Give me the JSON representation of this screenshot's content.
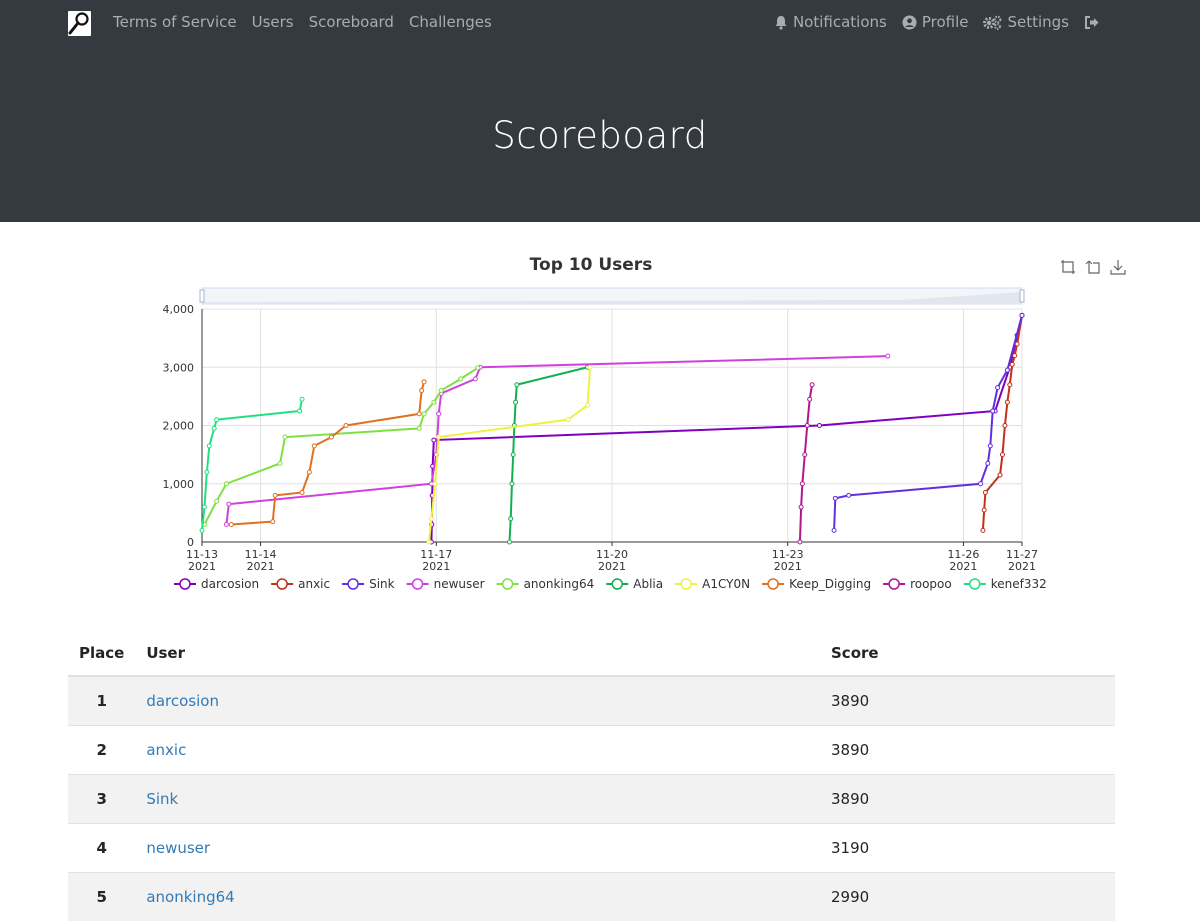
{
  "nav": {
    "brand_icon": "magnifier-logo-icon",
    "left": [
      "Terms of Service",
      "Users",
      "Scoreboard",
      "Challenges"
    ],
    "notifications": "Notifications",
    "profile": "Profile",
    "settings": "Settings"
  },
  "header": {
    "title": "Scoreboard"
  },
  "chart_data": {
    "type": "line",
    "title": "Top 10 Users",
    "xlabel": "",
    "ylabel": "",
    "ylim": [
      0,
      4000
    ],
    "xlim": [
      "2021-11-13",
      "2021-11-27"
    ],
    "yticks": [
      "0",
      "1,000",
      "2,000",
      "3,000",
      "4,000"
    ],
    "xticks": [
      {
        "date": "2021-11-13",
        "line1": "11-13",
        "line2": "2021"
      },
      {
        "date": "2021-11-14",
        "line1": "11-14",
        "line2": "2021"
      },
      {
        "date": "2021-11-17",
        "line1": "11-17",
        "line2": "2021"
      },
      {
        "date": "2021-11-20",
        "line1": "11-20",
        "line2": "2021"
      },
      {
        "date": "2021-11-23",
        "line1": "11-23",
        "line2": "2021"
      },
      {
        "date": "2021-11-26",
        "line1": "11-26",
        "line2": "2021"
      },
      {
        "date": "2021-11-27",
        "line1": "11-27",
        "line2": "2021"
      }
    ],
    "grid": true,
    "legend_position": "bottom",
    "series": [
      {
        "name": "darcosion",
        "color": "#8000c0",
        "points": [
          [
            "2021-11-16T22:00",
            0
          ],
          [
            "2021-11-16T22:10",
            300
          ],
          [
            "2021-11-16T22:20",
            800
          ],
          [
            "2021-11-16T22:30",
            1300
          ],
          [
            "2021-11-16T23:00",
            1750
          ],
          [
            "2021-11-23T13:00",
            2000
          ],
          [
            "2021-11-26T13:00",
            2250
          ],
          [
            "2021-11-26T19:00",
            3000
          ],
          [
            "2021-11-26T22:00",
            3550
          ],
          [
            "2021-11-27T00:00",
            3890
          ]
        ]
      },
      {
        "name": "anxic",
        "color": "#c0301a",
        "points": [
          [
            "2021-11-26T08:00",
            200
          ],
          [
            "2021-11-26T08:30",
            550
          ],
          [
            "2021-11-26T09:00",
            850
          ],
          [
            "2021-11-26T15:00",
            1150
          ],
          [
            "2021-11-26T16:00",
            1500
          ],
          [
            "2021-11-26T17:00",
            2000
          ],
          [
            "2021-11-26T18:00",
            2400
          ],
          [
            "2021-11-26T19:00",
            2700
          ],
          [
            "2021-11-26T20:00",
            3050
          ],
          [
            "2021-11-26T21:00",
            3200
          ],
          [
            "2021-11-26T22:00",
            3400
          ],
          [
            "2021-11-27T00:00",
            3890
          ]
        ]
      },
      {
        "name": "Sink",
        "color": "#6030e0",
        "points": [
          [
            "2021-11-23T19:00",
            200
          ],
          [
            "2021-11-23T19:30",
            750
          ],
          [
            "2021-11-24T01:00",
            800
          ],
          [
            "2021-11-26T07:00",
            1000
          ],
          [
            "2021-11-26T10:00",
            1350
          ],
          [
            "2021-11-26T11:00",
            1650
          ],
          [
            "2021-11-26T12:00",
            2250
          ],
          [
            "2021-11-26T14:00",
            2650
          ],
          [
            "2021-11-26T18:00",
            2950
          ],
          [
            "2021-11-27T00:00",
            3890
          ]
        ]
      },
      {
        "name": "newuser",
        "color": "#d040e0",
        "points": [
          [
            "2021-11-13T10:00",
            300
          ],
          [
            "2021-11-13T11:00",
            650
          ],
          [
            "2021-11-16T22:00",
            1000
          ],
          [
            "2021-11-17T00:00",
            1500
          ],
          [
            "2021-11-17T01:00",
            2200
          ],
          [
            "2021-11-17T02:00",
            2550
          ],
          [
            "2021-11-17T16:00",
            2800
          ],
          [
            "2021-11-17T18:00",
            3000
          ],
          [
            "2021-11-24T17:00",
            3190
          ]
        ]
      },
      {
        "name": "anonking64",
        "color": "#80e040",
        "points": [
          [
            "2021-11-13T01:00",
            300
          ],
          [
            "2021-11-13T06:00",
            700
          ],
          [
            "2021-11-13T10:00",
            1000
          ],
          [
            "2021-11-14T08:00",
            1350
          ],
          [
            "2021-11-14T10:00",
            1800
          ],
          [
            "2021-11-16T17:00",
            1950
          ],
          [
            "2021-11-16T19:00",
            2200
          ],
          [
            "2021-11-16T23:00",
            2400
          ],
          [
            "2021-11-17T02:00",
            2600
          ],
          [
            "2021-11-17T10:00",
            2800
          ],
          [
            "2021-11-17T17:00",
            2990
          ]
        ]
      },
      {
        "name": "Ablia",
        "color": "#10b050",
        "points": [
          [
            "2021-11-18T06:00",
            0
          ],
          [
            "2021-11-18T06:30",
            400
          ],
          [
            "2021-11-18T07:00",
            1000
          ],
          [
            "2021-11-18T07:30",
            1500
          ],
          [
            "2021-11-18T08:00",
            2000
          ],
          [
            "2021-11-18T08:30",
            2400
          ],
          [
            "2021-11-18T09:00",
            2700
          ],
          [
            "2021-11-19T14:00",
            3000
          ]
        ]
      },
      {
        "name": "A1CY0N",
        "color": "#f0f040",
        "points": [
          [
            "2021-11-16T21:00",
            0
          ],
          [
            "2021-11-16T22:00",
            400
          ],
          [
            "2021-11-16T23:30",
            1000
          ],
          [
            "2021-11-17T01:00",
            1800
          ],
          [
            "2021-11-19T06:00",
            2100
          ],
          [
            "2021-11-19T14:00",
            2350
          ],
          [
            "2021-11-19T15:00",
            3000
          ]
        ]
      },
      {
        "name": "Keep_Digging",
        "color": "#e07020",
        "points": [
          [
            "2021-11-13T12:00",
            300
          ],
          [
            "2021-11-14T05:00",
            350
          ],
          [
            "2021-11-14T06:00",
            800
          ],
          [
            "2021-11-14T17:00",
            850
          ],
          [
            "2021-11-14T20:00",
            1200
          ],
          [
            "2021-11-14T22:00",
            1650
          ],
          [
            "2021-11-15T05:00",
            1800
          ],
          [
            "2021-11-15T11:00",
            2000
          ],
          [
            "2021-11-16T17:00",
            2200
          ],
          [
            "2021-11-16T18:00",
            2600
          ],
          [
            "2021-11-16T19:00",
            2750
          ]
        ]
      },
      {
        "name": "roopoo",
        "color": "#b01890",
        "points": [
          [
            "2021-11-23T05:00",
            0
          ],
          [
            "2021-11-23T05:30",
            600
          ],
          [
            "2021-11-23T06:00",
            1000
          ],
          [
            "2021-11-23T07:00",
            1500
          ],
          [
            "2021-11-23T08:00",
            2000
          ],
          [
            "2021-11-23T09:00",
            2450
          ],
          [
            "2021-11-23T10:00",
            2700
          ]
        ]
      },
      {
        "name": "kenef332",
        "color": "#20e080",
        "points": [
          [
            "2021-11-13T00:00",
            200
          ],
          [
            "2021-11-13T01:00",
            600
          ],
          [
            "2021-11-13T02:00",
            1200
          ],
          [
            "2021-11-13T03:00",
            1650
          ],
          [
            "2021-11-13T05:00",
            1950
          ],
          [
            "2021-11-13T06:00",
            2100
          ],
          [
            "2021-11-14T16:00",
            2250
          ],
          [
            "2021-11-14T17:00",
            2450
          ]
        ]
      }
    ]
  },
  "table": {
    "headers": {
      "place": "Place",
      "user": "User",
      "score": "Score"
    },
    "rows": [
      {
        "place": "1",
        "user": "darcosion",
        "score": "3890"
      },
      {
        "place": "2",
        "user": "anxic",
        "score": "3890"
      },
      {
        "place": "3",
        "user": "Sink",
        "score": "3890"
      },
      {
        "place": "4",
        "user": "newuser",
        "score": "3190"
      },
      {
        "place": "5",
        "user": "anonking64",
        "score": "2990"
      }
    ]
  }
}
